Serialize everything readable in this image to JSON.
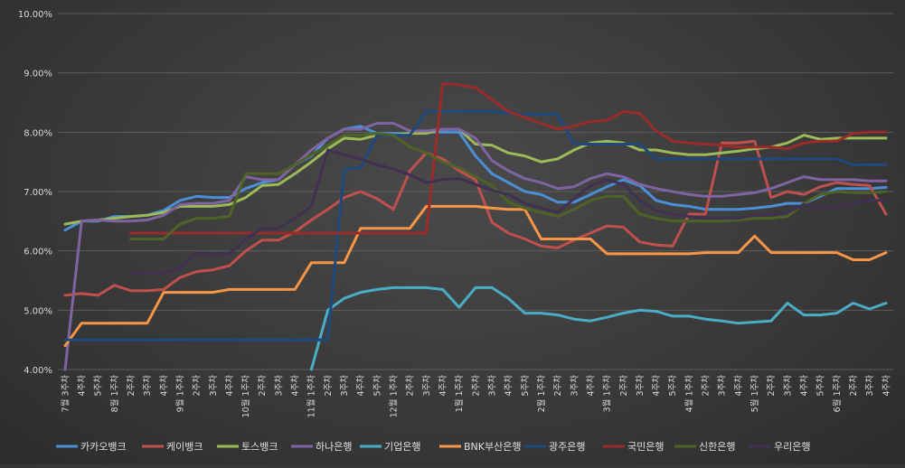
{
  "chart_data": {
    "type": "line",
    "y_ticks": [
      "4.00%",
      "5.00%",
      "6.00%",
      "7.00%",
      "8.00%",
      "9.00%",
      "10.00%"
    ],
    "ylim": [
      4.0,
      10.0
    ],
    "grid": true,
    "legend_position": "bottom",
    "x_labels": [
      "7월 3주차",
      "4주차",
      "5주차",
      "8월 1주차",
      "2주차",
      "3주차",
      "4주차",
      "9월 1주차",
      "2주차",
      "3주차",
      "4주차",
      "10월 1주차",
      "2주차",
      "3주차",
      "4주차",
      "11월 1주차",
      "2주차",
      "3주차",
      "4주차",
      "5주차",
      "12월 1주차",
      "2주차",
      "3주차",
      "4주차",
      "1월 1주차",
      "2주차",
      "3주차",
      "4주차",
      "5주차",
      "2월 1주차",
      "2주차",
      "3주차",
      "4주차",
      "3월 1주차",
      "2주차",
      "3주차",
      "4주차",
      "5주차",
      "4월 1주차",
      "2주차",
      "3주차",
      "4주차",
      "5월 1주차",
      "2주차",
      "3주차",
      "4주차",
      "5주차",
      "6월 1주차",
      "2주차",
      "3주차",
      "4주차"
    ],
    "series": [
      {
        "name": "카카오뱅크",
        "color": "#4a8fd8",
        "values": [
          6.35,
          6.5,
          6.5,
          6.58,
          6.58,
          6.6,
          6.68,
          6.85,
          6.92,
          6.9,
          6.9,
          7.05,
          7.15,
          7.2,
          7.45,
          7.6,
          7.9,
          8.05,
          8.1,
          7.98,
          7.98,
          7.98,
          8.0,
          8.0,
          8.0,
          7.6,
          7.3,
          7.15,
          7.0,
          6.95,
          6.82,
          6.82,
          6.95,
          7.08,
          7.2,
          7.1,
          6.85,
          6.78,
          6.75,
          6.7,
          6.7,
          6.7,
          6.72,
          6.75,
          6.8,
          6.8,
          6.92,
          7.05,
          7.05,
          7.05,
          7.07
        ]
      },
      {
        "name": "케이뱅크",
        "color": "#c0504d",
        "values": [
          5.25,
          5.28,
          5.25,
          5.42,
          5.33,
          5.33,
          5.35,
          5.55,
          5.65,
          5.68,
          5.75,
          6.0,
          6.18,
          6.18,
          6.32,
          6.52,
          6.7,
          6.9,
          7.0,
          6.88,
          6.7,
          7.35,
          7.65,
          7.55,
          7.35,
          7.2,
          6.48,
          6.3,
          6.2,
          6.08,
          6.05,
          6.18,
          6.3,
          6.42,
          6.4,
          6.15,
          6.1,
          6.08,
          6.62,
          6.62,
          7.82,
          7.82,
          7.85,
          6.9,
          7.0,
          6.95,
          7.08,
          7.15,
          7.12,
          7.1,
          6.62
        ]
      },
      {
        "name": "토스뱅크",
        "color": "#9bbb59",
        "values": [
          6.45,
          6.5,
          6.52,
          6.55,
          6.58,
          6.6,
          6.65,
          6.75,
          6.75,
          6.75,
          6.78,
          6.9,
          7.1,
          7.12,
          7.3,
          7.5,
          7.72,
          7.9,
          7.88,
          7.95,
          7.95,
          7.98,
          7.98,
          8.05,
          8.05,
          7.8,
          7.78,
          7.65,
          7.6,
          7.5,
          7.55,
          7.7,
          7.82,
          7.85,
          7.82,
          7.7,
          7.7,
          7.65,
          7.62,
          7.62,
          7.65,
          7.68,
          7.72,
          7.75,
          7.82,
          7.95,
          7.88,
          7.9,
          7.9,
          7.9,
          7.9
        ]
      },
      {
        "name": "하나은행",
        "color": "#8064a2",
        "values": [
          4.0,
          6.5,
          6.52,
          6.5,
          6.5,
          6.52,
          6.6,
          6.78,
          6.8,
          6.8,
          6.85,
          7.25,
          7.2,
          7.2,
          7.45,
          7.7,
          7.9,
          8.05,
          8.05,
          8.15,
          8.15,
          8.02,
          8.02,
          8.05,
          8.05,
          7.9,
          7.52,
          7.35,
          7.22,
          7.15,
          7.05,
          7.08,
          7.22,
          7.3,
          7.25,
          7.12,
          7.05,
          7.0,
          6.95,
          6.92,
          6.92,
          6.95,
          6.98,
          7.05,
          7.15,
          7.25,
          7.2,
          7.2,
          7.2,
          7.18,
          7.18
        ]
      },
      {
        "name": "기업은행",
        "color": "#4bacc6",
        "values": [
          null,
          null,
          null,
          null,
          null,
          null,
          null,
          null,
          null,
          null,
          null,
          null,
          null,
          null,
          null,
          4.0,
          5.0,
          5.2,
          5.3,
          5.35,
          5.38,
          5.38,
          5.38,
          5.35,
          5.05,
          5.38,
          5.38,
          5.2,
          4.95,
          4.95,
          4.92,
          4.85,
          4.82,
          4.88,
          4.95,
          5.0,
          4.98,
          4.9,
          4.9,
          4.85,
          4.82,
          4.78,
          4.8,
          4.82,
          5.12,
          4.92,
          4.92,
          4.95,
          5.12,
          5.02,
          5.12
        ]
      },
      {
        "name": "BNK부산은행",
        "color": "#f79646",
        "values": [
          4.4,
          4.78,
          4.78,
          4.78,
          4.78,
          4.78,
          5.3,
          5.3,
          5.3,
          5.3,
          5.35,
          5.35,
          5.35,
          5.35,
          5.35,
          5.8,
          5.8,
          5.8,
          6.38,
          6.38,
          6.38,
          6.38,
          6.75,
          6.75,
          6.75,
          6.75,
          6.72,
          6.7,
          6.7,
          6.2,
          6.2,
          6.2,
          6.2,
          5.95,
          5.95,
          5.95,
          5.95,
          5.95,
          5.95,
          5.97,
          5.97,
          5.97,
          6.25,
          5.97,
          5.97,
          5.97,
          5.97,
          5.97,
          5.85,
          5.85,
          5.97
        ]
      },
      {
        "name": "광주은행",
        "color": "#1f497d",
        "values": [
          4.5,
          4.5,
          4.5,
          4.5,
          4.5,
          4.5,
          4.5,
          4.5,
          4.5,
          4.5,
          4.5,
          4.5,
          4.5,
          4.5,
          4.5,
          4.5,
          4.5,
          7.38,
          7.4,
          7.95,
          7.95,
          7.95,
          8.35,
          8.35,
          8.35,
          8.35,
          8.35,
          8.32,
          8.3,
          8.3,
          8.3,
          7.8,
          7.8,
          7.8,
          7.8,
          7.8,
          7.55,
          7.55,
          7.55,
          7.55,
          7.55,
          7.55,
          7.55,
          7.55,
          7.55,
          7.55,
          7.55,
          7.55,
          7.45,
          7.45,
          7.45
        ]
      },
      {
        "name": "국민은행",
        "color": "#9a2b2b",
        "values": [
          4.0,
          null,
          null,
          null,
          6.3,
          6.3,
          6.3,
          6.3,
          6.3,
          6.3,
          6.3,
          6.3,
          6.3,
          6.3,
          6.3,
          6.3,
          6.3,
          6.3,
          6.3,
          6.3,
          6.3,
          6.3,
          6.3,
          8.82,
          8.8,
          8.75,
          8.55,
          8.35,
          8.25,
          8.15,
          8.05,
          8.1,
          8.18,
          8.2,
          8.35,
          8.32,
          8.02,
          7.85,
          7.82,
          7.8,
          7.78,
          7.75,
          7.75,
          7.75,
          7.72,
          7.82,
          7.85,
          7.85,
          7.98,
          8.0,
          8.0
        ]
      },
      {
        "name": "신한은행",
        "color": "#4f6228",
        "values": [
          null,
          null,
          null,
          null,
          6.2,
          6.2,
          6.2,
          6.45,
          6.55,
          6.55,
          6.58,
          7.3,
          7.3,
          7.3,
          7.45,
          7.62,
          7.78,
          7.95,
          7.95,
          7.98,
          7.95,
          7.75,
          7.65,
          7.5,
          7.4,
          7.25,
          7.1,
          6.82,
          6.72,
          6.65,
          6.58,
          6.7,
          6.85,
          6.92,
          6.92,
          6.62,
          6.55,
          6.5,
          6.5,
          6.5,
          6.5,
          6.52,
          6.55,
          6.55,
          6.58,
          6.8,
          6.95,
          7.0,
          6.98,
          6.98,
          7.0
        ]
      },
      {
        "name": "우리은행",
        "color": "#403152",
        "values": [
          null,
          null,
          null,
          null,
          5.62,
          5.62,
          5.62,
          5.72,
          5.95,
          5.95,
          5.95,
          6.2,
          6.38,
          6.38,
          6.55,
          6.75,
          7.7,
          7.62,
          7.55,
          7.45,
          7.38,
          7.28,
          7.15,
          7.2,
          7.22,
          7.12,
          7.02,
          6.95,
          6.8,
          6.72,
          6.65,
          6.88,
          7.1,
          7.2,
          7.12,
          6.85,
          6.68,
          6.62,
          6.58,
          6.55,
          6.55,
          6.55,
          6.6,
          6.62,
          6.65,
          6.78,
          6.72,
          6.75,
          6.8,
          6.85,
          6.85
        ]
      }
    ]
  }
}
